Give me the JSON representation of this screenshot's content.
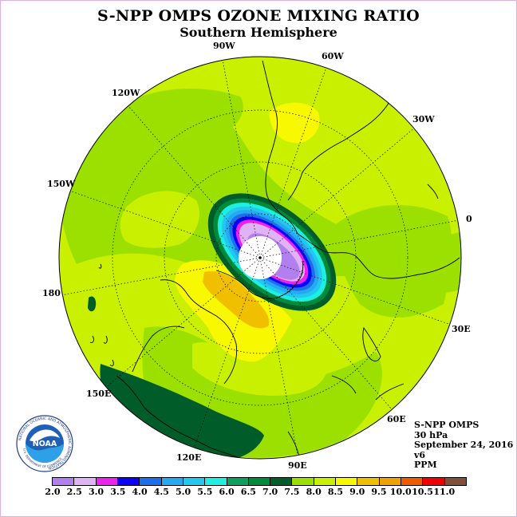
{
  "title": "S-NPP OMPS OZONE MIXING RATIO",
  "subtitle": "Southern Hemisphere",
  "longitude_labels": [
    "90W",
    "60W",
    "30W",
    "0",
    "30E",
    "60E",
    "90E",
    "120E",
    "150E",
    "180",
    "150W",
    "120W"
  ],
  "info": {
    "instrument": "S-NPP OMPS",
    "level": "30 hPa",
    "date": "September 24, 2016",
    "version": "v6",
    "units": "PPM"
  },
  "logo": {
    "text": "NOAA",
    "ring_text": "NATIONAL OCEANIC AND ATMOSPHERIC ADMINISTRATION",
    "bottom_text": "U.S. DEPARTMENT OF COMMERCE"
  },
  "colorbar": {
    "ticks": [
      "2.0",
      "2.5",
      "3.0",
      "3.5",
      "4.0",
      "4.5",
      "5.0",
      "5.5",
      "6.0",
      "6.5",
      "7.0",
      "7.5",
      "8.0",
      "8.5",
      "9.0",
      "9.5",
      "10.0",
      "10.5",
      "11.0"
    ],
    "colors": [
      "#b27fef",
      "#e0b3f5",
      "#ee22ee",
      "#0a00ff",
      "#1c6eeb",
      "#25a9f0",
      "#22c8f0",
      "#1fefe0",
      "#0ca060",
      "#008a3c",
      "#005c28",
      "#9be000",
      "#c8f000",
      "#f8f800",
      "#f0c000",
      "#f0a000",
      "#f05a00",
      "#f00000",
      "#80503a"
    ]
  }
}
